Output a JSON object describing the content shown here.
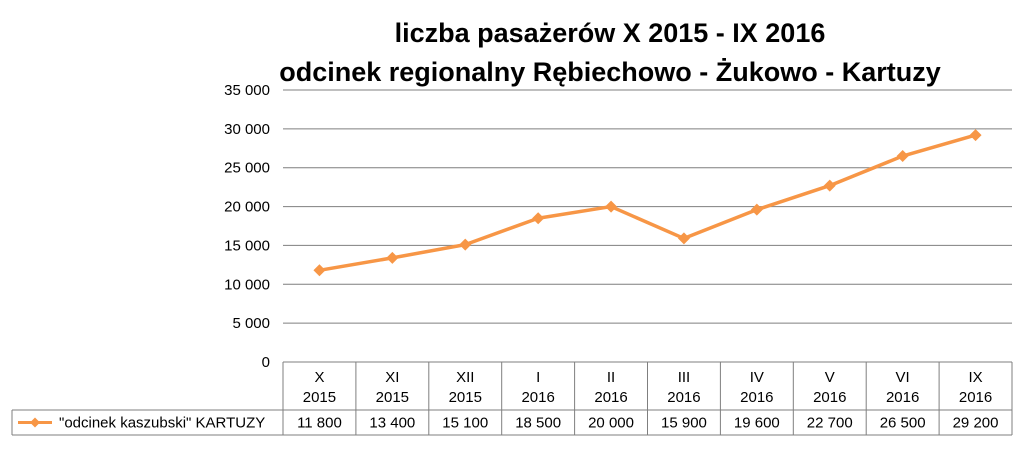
{
  "chart_data": {
    "type": "line",
    "title": "liczba pasażerów X 2015 - IX 2016",
    "subtitle": "odcinek regionalny Rębiechowo - Żukowo - Kartuzy",
    "categories": [
      [
        "X",
        "2015"
      ],
      [
        "XI",
        "2015"
      ],
      [
        "XII",
        "2015"
      ],
      [
        "I",
        "2016"
      ],
      [
        "II",
        "2016"
      ],
      [
        "III",
        "2016"
      ],
      [
        "IV",
        "2016"
      ],
      [
        "V",
        "2016"
      ],
      [
        "VI",
        "2016"
      ],
      [
        "IX",
        "2016"
      ]
    ],
    "series": [
      {
        "name": "\"odcinek kaszubski\" KARTUZY",
        "values": [
          11800,
          13400,
          15100,
          18500,
          20000,
          15900,
          19600,
          22700,
          26500,
          29200
        ],
        "value_labels": [
          "11 800",
          "13 400",
          "15 100",
          "18 500",
          "20 000",
          "15 900",
          "19 600",
          "22 700",
          "26 500",
          "29 200"
        ],
        "color": "#f79646",
        "marker": "diamond"
      }
    ],
    "ylim": [
      0,
      35000
    ],
    "yticks": [
      0,
      5000,
      10000,
      15000,
      20000,
      25000,
      30000,
      35000
    ],
    "ytick_labels": [
      "0",
      "5 000",
      "10 000",
      "15 000",
      "20 000",
      "25 000",
      "30 000",
      "35 000"
    ],
    "grid": true,
    "legend": "data-table",
    "gridline_color": "#7f7f7f"
  }
}
